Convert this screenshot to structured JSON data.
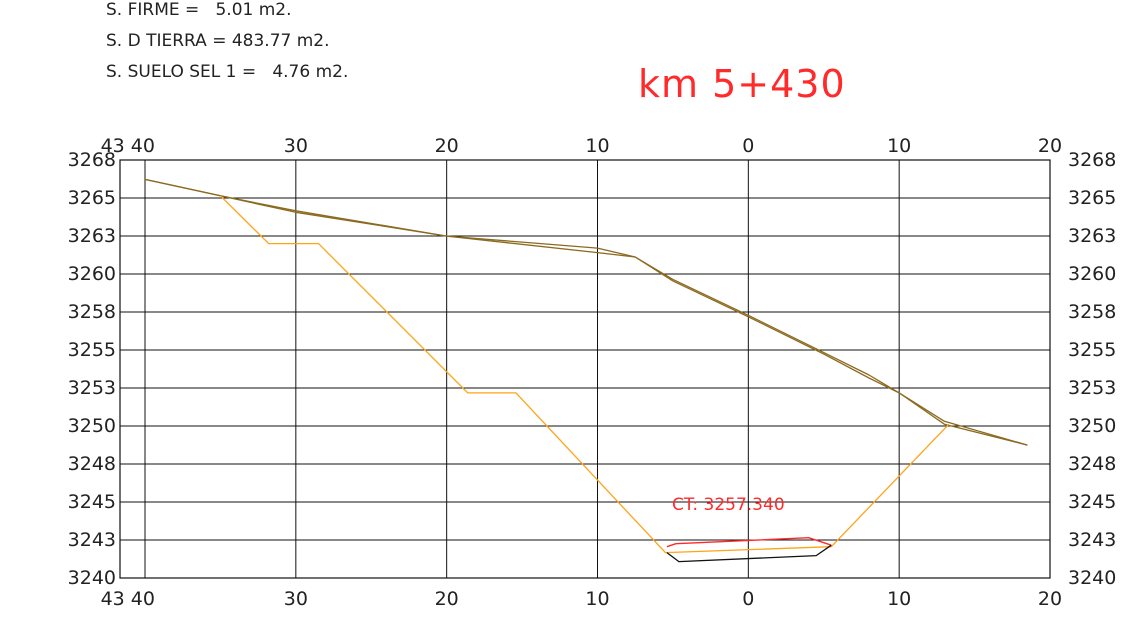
{
  "areas": [
    {
      "label": "S. FIRME =",
      "value": "5.01 m2."
    },
    {
      "label": "S. D TIERRA =",
      "value": "483.77 m2."
    },
    {
      "label": "S. SUELO SEL 1 =",
      "value": "4.76 m2."
    }
  ],
  "km_label": "km 5+430",
  "ct_label": "CT: 3257.340",
  "axes": {
    "x_ticks_top": [
      "43 40",
      "30",
      "20",
      "10",
      "0",
      "10",
      "20"
    ],
    "x_ticks_bottom": [
      "43 40",
      "30",
      "20",
      "10",
      "0",
      "10",
      "20"
    ],
    "y_ticks": [
      "3268",
      "3265",
      "3263",
      "3260",
      "3258",
      "3255",
      "3253",
      "3250",
      "3248",
      "3245",
      "3243",
      "3240"
    ]
  },
  "colors": {
    "terrain": "#8b6a1f",
    "excavation": "#ffa31a",
    "pavement": "#ff2a2a",
    "subgrade": "#111111",
    "grid": "#111111"
  },
  "chart_data": {
    "type": "line",
    "xlim": [
      -40,
      20
    ],
    "ylim": [
      3240,
      3268
    ],
    "series": [
      {
        "key": "terrain_a",
        "x": [
          -40,
          -35,
          -30,
          -20,
          -10,
          -7.5,
          -5,
          0,
          5,
          8,
          10,
          13,
          18.5
        ],
        "y": [
          3266.7,
          3265.6,
          3264.6,
          3262.9,
          3261.8,
          3261.5,
          3259.9,
          3257.5,
          3255.0,
          3253.4,
          3252.4,
          3250.5,
          3248.9
        ]
      },
      {
        "key": "terrain_b",
        "x": [
          -40,
          -35,
          -30,
          -20,
          -15,
          -10,
          -7.5,
          -5,
          0,
          5,
          8,
          10,
          13,
          18.5
        ],
        "y": [
          3266.7,
          3265.6,
          3264.5,
          3262.9,
          3262.5,
          3262.1,
          3261.5,
          3260.0,
          3257.6,
          3255.1,
          3253.6,
          3252.4,
          3250.3,
          3248.9
        ]
      },
      {
        "key": "excavation",
        "x": [
          -35,
          -31.8,
          -28.5,
          -18.6,
          -15.4,
          -5.5,
          5.5,
          13.3
        ],
        "y": [
          3265.6,
          3262.4,
          3262.4,
          3252.4,
          3252.4,
          3241.7,
          3242.1,
          3250.3
        ]
      },
      {
        "key": "pavement",
        "x": [
          -5.4,
          -4.8,
          4.0,
          5.5
        ],
        "y": [
          3242.1,
          3242.3,
          3242.7,
          3242.2
        ]
      },
      {
        "key": "subgrade",
        "x": [
          -5.4,
          -4.6,
          4.5,
          5.5
        ],
        "y": [
          3241.7,
          3241.1,
          3241.5,
          3242.2
        ]
      }
    ]
  }
}
